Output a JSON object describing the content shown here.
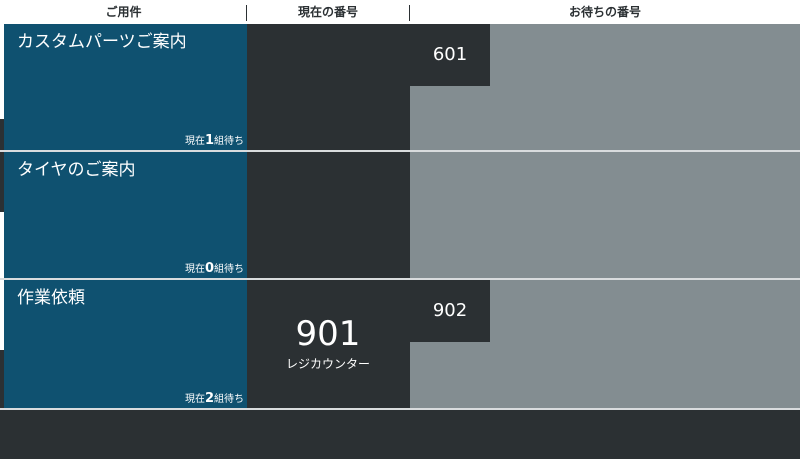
{
  "header": {
    "col_service": "ご用件",
    "col_current": "現在の番号",
    "col_waiting": "お待ちの番号"
  },
  "rows": [
    {
      "service": "カスタムパーツご案内",
      "wait_prefix": "現在",
      "wait_count": "1",
      "wait_suffix": "組待ち",
      "current_number": "",
      "current_location": "",
      "waiting_tickets": [
        "601"
      ]
    },
    {
      "service": "タイヤのご案内",
      "wait_prefix": "現在",
      "wait_count": "0",
      "wait_suffix": "組待ち",
      "current_number": "",
      "current_location": "",
      "waiting_tickets": []
    },
    {
      "service": "作業依頼",
      "wait_prefix": "現在",
      "wait_count": "2",
      "wait_suffix": "組待ち",
      "current_number": "901",
      "current_location": "レジカウンター",
      "waiting_tickets": [
        "902"
      ]
    }
  ],
  "colors": {
    "service_bg": "#0f5170",
    "current_bg": "#2b3033",
    "waiting_bg": "#838d91"
  }
}
